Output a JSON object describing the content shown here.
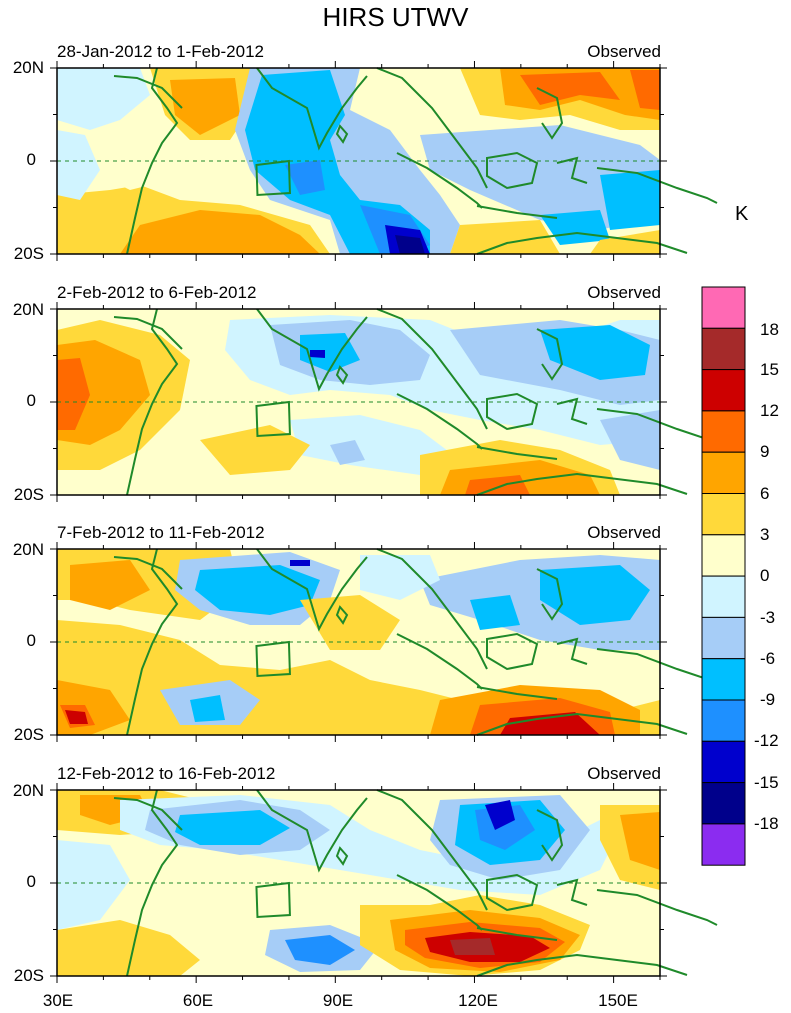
{
  "title": "HIRS UTWV",
  "unit": "K",
  "panels": [
    {
      "date_range": "28-Jan-2012 to 1-Feb-2012",
      "status": "Observed"
    },
    {
      "date_range": "2-Feb-2012 to 6-Feb-2012",
      "status": "Observed"
    },
    {
      "date_range": "7-Feb-2012 to 11-Feb-2012",
      "status": "Observed"
    },
    {
      "date_range": "12-Feb-2012 to 16-Feb-2012",
      "status": "Observed"
    }
  ],
  "lat_labels": [
    "20N",
    "0",
    "20S"
  ],
  "lon_labels": [
    "30E",
    "60E",
    "90E",
    "120E",
    "150E"
  ],
  "colorbar": {
    "labels": [
      "18",
      "15",
      "12",
      "9",
      "6",
      "3",
      "0",
      "-3",
      "-6",
      "-9",
      "-12",
      "-15",
      "-18"
    ],
    "colors": [
      "#ff69b4",
      "#a52a2a",
      "#cd0000",
      "#ff6a00",
      "#ffa500",
      "#ffd93a",
      "#ffffcc",
      "#d0f4ff",
      "#a6cdf7",
      "#00bfff",
      "#1e90ff",
      "#0000cd",
      "#00008b",
      "#8b2cf0"
    ]
  },
  "map_extent": {
    "lon": [
      30,
      160
    ],
    "lat": [
      -20,
      20
    ]
  }
}
